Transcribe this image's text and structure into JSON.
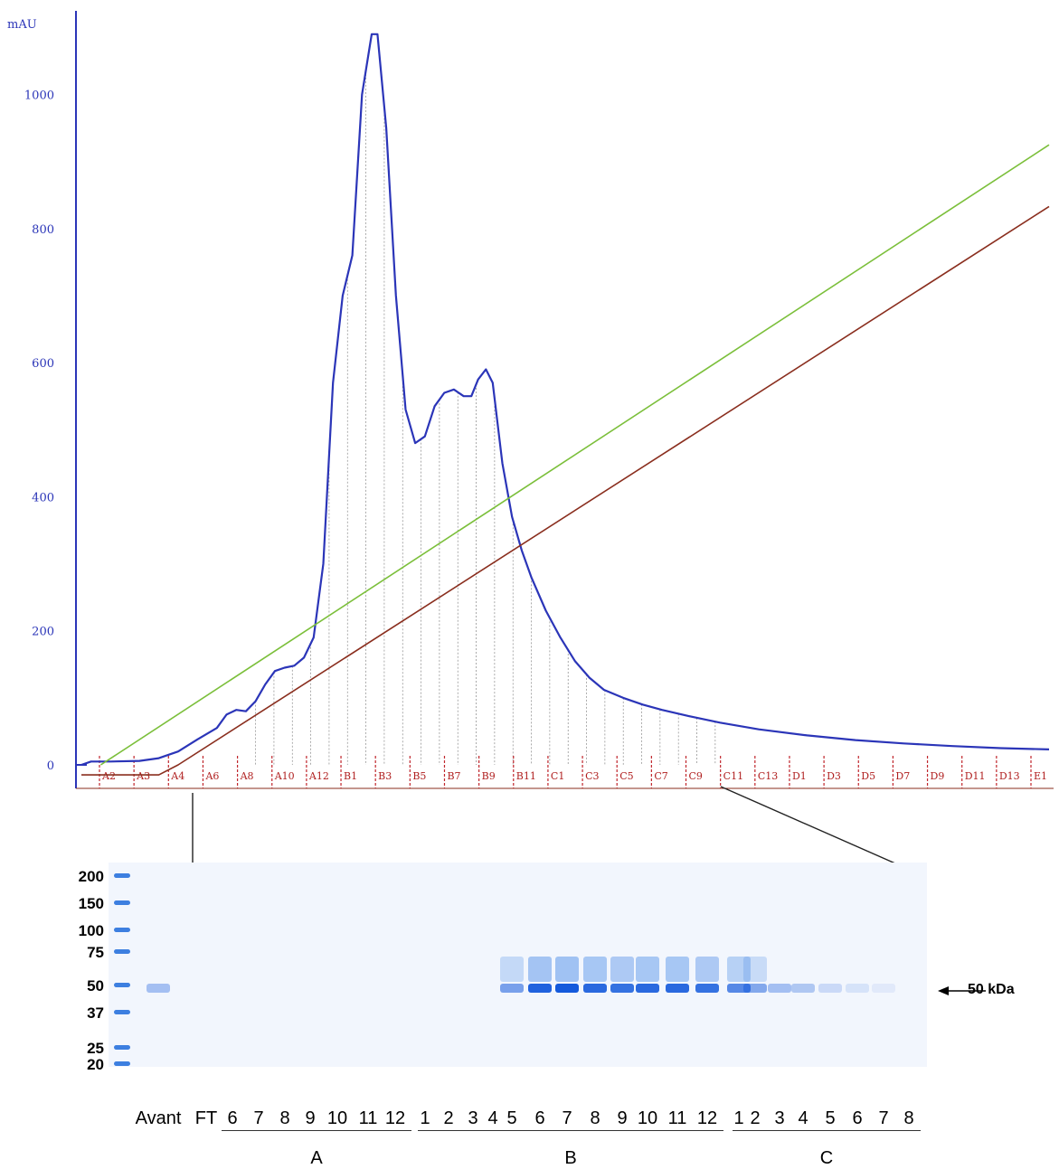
{
  "chart_data": {
    "type": "line",
    "ylabel": "mAU",
    "yticks": [
      "0",
      "200",
      "400",
      "600",
      "800",
      "1000"
    ],
    "ylim": [
      0,
      1110
    ],
    "xlim": [
      0,
      100
    ],
    "fraction_labels": [
      "A2",
      "A3",
      "A4",
      "A6",
      "A8",
      "A10",
      "A12",
      "B1",
      "B3",
      "B5",
      "B7",
      "B9",
      "B11",
      "C1",
      "C3",
      "C5",
      "C7",
      "C9",
      "C11",
      "C13",
      "D1",
      "D3",
      "D5",
      "D7",
      "D9",
      "D11",
      "D13",
      "E1"
    ],
    "series": [
      {
        "color": "#2b35b8",
        "points": [
          [
            0,
            0
          ],
          [
            1,
            5
          ],
          [
            3,
            5
          ],
          [
            6,
            6
          ],
          [
            8,
            10
          ],
          [
            10,
            20
          ],
          [
            12,
            38
          ],
          [
            14,
            55
          ],
          [
            15,
            75
          ],
          [
            16,
            82
          ],
          [
            17,
            80
          ],
          [
            18,
            95
          ],
          [
            19,
            120
          ],
          [
            20,
            140
          ],
          [
            21,
            145
          ],
          [
            22,
            148
          ],
          [
            23,
            160
          ],
          [
            24,
            190
          ],
          [
            25,
            300
          ],
          [
            26,
            570
          ],
          [
            27,
            700
          ],
          [
            28,
            760
          ],
          [
            29,
            1000
          ],
          [
            30,
            1090
          ],
          [
            30.6,
            1090
          ],
          [
            31.5,
            950
          ],
          [
            32.5,
            700
          ],
          [
            33.5,
            530
          ],
          [
            34.5,
            480
          ],
          [
            35.5,
            490
          ],
          [
            36.5,
            535
          ],
          [
            37.5,
            555
          ],
          [
            38.5,
            560
          ],
          [
            39.5,
            550
          ],
          [
            40.3,
            550
          ],
          [
            41,
            575
          ],
          [
            41.8,
            590
          ],
          [
            42.5,
            570
          ],
          [
            43.5,
            450
          ],
          [
            44.5,
            370
          ],
          [
            45.5,
            320
          ],
          [
            46.5,
            280
          ],
          [
            48,
            230
          ],
          [
            49.5,
            190
          ],
          [
            51,
            155
          ],
          [
            52.5,
            130
          ],
          [
            54,
            112
          ],
          [
            56,
            100
          ],
          [
            58,
            90
          ],
          [
            60,
            82
          ],
          [
            63,
            72
          ],
          [
            66,
            63
          ],
          [
            70,
            53
          ],
          [
            75,
            44
          ],
          [
            80,
            37
          ],
          [
            85,
            32
          ],
          [
            90,
            28
          ],
          [
            95,
            25
          ],
          [
            100,
            23
          ]
        ]
      },
      {
        "color": "#7bbf3a",
        "points": [
          [
            2,
            0
          ],
          [
            100,
            925
          ]
        ]
      },
      {
        "color": "#8a2e1e",
        "points": [
          [
            0,
            -15
          ],
          [
            8,
            -15
          ],
          [
            10,
            0
          ],
          [
            100,
            833
          ]
        ]
      }
    ]
  },
  "gel": {
    "markers": [
      "200",
      "150",
      "100",
      "75",
      "50",
      "37",
      "25",
      "20"
    ],
    "lanes": [
      "Avant",
      "FT",
      "6",
      "7",
      "8",
      "9",
      "10",
      "11",
      "12",
      "1",
      "2",
      "3",
      "4",
      "5",
      "6",
      "7",
      "8",
      "9",
      "10",
      "11",
      "12",
      "1",
      "2",
      "3",
      "4",
      "5",
      "6",
      "7",
      "8"
    ],
    "groups": [
      "A",
      "B",
      "C"
    ],
    "target_label": "50 kDa"
  }
}
